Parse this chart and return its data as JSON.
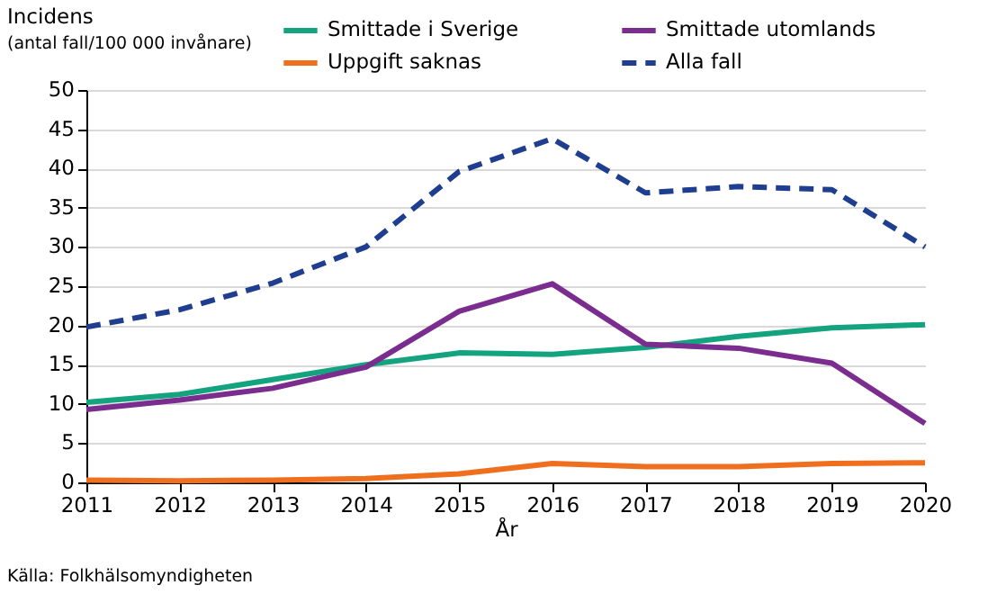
{
  "chart_data": {
    "type": "line",
    "ylabel": "Incidens\n(antal fall/100 000 invånare)",
    "xlabel": "År",
    "x": [
      2011,
      2012,
      2013,
      2014,
      2015,
      2016,
      2017,
      2018,
      2019,
      2020
    ],
    "series": [
      {
        "name": "Smittade i Sverige",
        "color": "#13a37f",
        "line_style": "solid",
        "values": [
          10.2,
          11.2,
          13.1,
          15.0,
          16.5,
          16.3,
          17.2,
          18.6,
          19.7,
          20.1
        ]
      },
      {
        "name": "Smittade utomlands",
        "color": "#7b2c8f",
        "line_style": "solid",
        "values": [
          9.3,
          10.5,
          12.0,
          14.7,
          21.8,
          25.3,
          17.6,
          17.1,
          15.2,
          7.5
        ]
      },
      {
        "name": "Uppgift saknas",
        "color": "#f06f1e",
        "line_style": "solid",
        "values": [
          0.3,
          0.2,
          0.3,
          0.5,
          1.1,
          2.4,
          2.0,
          2.0,
          2.4,
          2.5
        ]
      },
      {
        "name": "Alla fall",
        "color": "#1f3e8f",
        "line_style": "dashed",
        "values": [
          19.8,
          22.0,
          25.4,
          30.0,
          39.6,
          43.8,
          36.9,
          37.7,
          37.3,
          30.0
        ]
      }
    ],
    "xlim": [
      2011,
      2020
    ],
    "xticks": [
      2011,
      2012,
      2013,
      2014,
      2015,
      2016,
      2017,
      2018,
      2019,
      2020
    ],
    "ylim": [
      0,
      50
    ],
    "yticks": [
      0,
      5,
      10,
      15,
      20,
      25,
      30,
      35,
      40,
      45,
      50
    ],
    "grid": "y",
    "legend": "top",
    "marker": "none",
    "annotations": [
      "Källa: Folkhälsomyndigheten"
    ]
  }
}
